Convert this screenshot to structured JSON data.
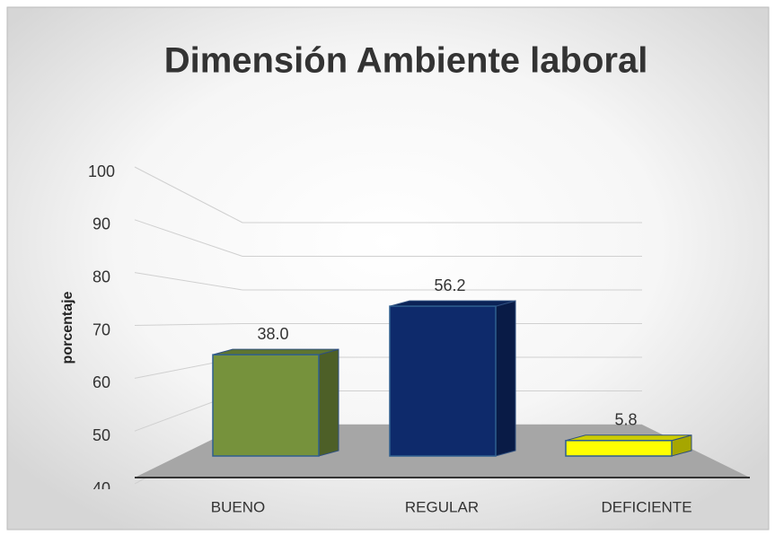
{
  "chart_data": {
    "type": "bar3d",
    "title": "Dimensión Ambiente laboral",
    "y_label": "porcentaje",
    "categories": [
      "BUENO",
      "REGULAR",
      "DEFICIENTE"
    ],
    "values": [
      38.0,
      56.2,
      5.8
    ],
    "value_labels": [
      "38.0",
      "56.2",
      "5.8"
    ],
    "colors": [
      "#76923c",
      "#0e2a6b",
      "#ffff00"
    ],
    "ylim": [
      40,
      100
    ],
    "yticks": [
      40,
      50,
      60,
      70,
      80,
      90,
      100
    ],
    "grid": true
  }
}
